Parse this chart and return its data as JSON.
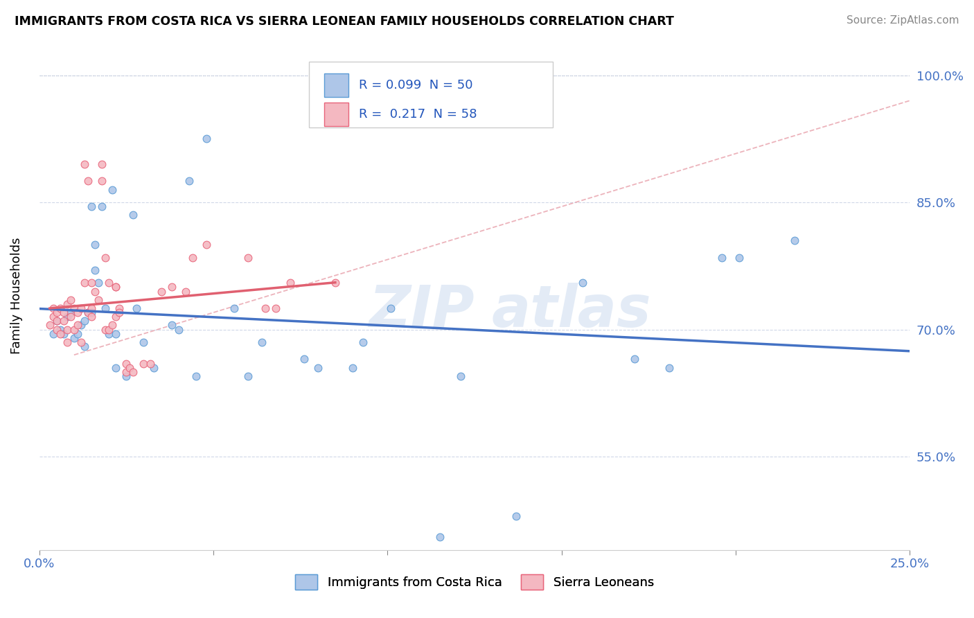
{
  "title": "IMMIGRANTS FROM COSTA RICA VS SIERRA LEONEAN FAMILY HOUSEHOLDS CORRELATION CHART",
  "source": "Source: ZipAtlas.com",
  "ylabel": "Family Households",
  "xlim": [
    0.0,
    0.25
  ],
  "ylim": [
    0.44,
    1.04
  ],
  "yticks": [
    0.55,
    0.7,
    0.85,
    1.0
  ],
  "ytick_labels": [
    "55.0%",
    "70.0%",
    "85.0%",
    "100.0%"
  ],
  "xtick_positions": [
    0.0,
    0.05,
    0.1,
    0.15,
    0.2,
    0.25
  ],
  "xtick_labels": [
    "0.0%",
    "",
    "",
    "",
    "",
    "25.0%"
  ],
  "legend_cr": {
    "label": "Immigrants from Costa Rica",
    "face": "#aec6e8",
    "edge": "#5b9bd5",
    "R": "0.099",
    "N": "50"
  },
  "legend_sl": {
    "label": "Sierra Leoneans",
    "face": "#f4b8c1",
    "edge": "#e8647a",
    "R": "0.217",
    "N": "58"
  },
  "trend_color_cr": "#4472c4",
  "trend_color_sl": "#e06070",
  "diag_color": "#e8a0aa",
  "tick_color": "#4472c4",
  "grid_color": "#d0d8e8",
  "scatter_cr": [
    [
      0.004,
      0.695
    ],
    [
      0.005,
      0.71
    ],
    [
      0.006,
      0.7
    ],
    [
      0.007,
      0.695
    ],
    [
      0.008,
      0.715
    ],
    [
      0.009,
      0.72
    ],
    [
      0.01,
      0.69
    ],
    [
      0.011,
      0.695
    ],
    [
      0.012,
      0.705
    ],
    [
      0.013,
      0.68
    ],
    [
      0.013,
      0.71
    ],
    [
      0.014,
      0.72
    ],
    [
      0.015,
      0.845
    ],
    [
      0.015,
      0.72
    ],
    [
      0.016,
      0.8
    ],
    [
      0.016,
      0.77
    ],
    [
      0.017,
      0.755
    ],
    [
      0.018,
      0.845
    ],
    [
      0.019,
      0.725
    ],
    [
      0.02,
      0.695
    ],
    [
      0.021,
      0.865
    ],
    [
      0.022,
      0.695
    ],
    [
      0.022,
      0.655
    ],
    [
      0.025,
      0.645
    ],
    [
      0.027,
      0.835
    ],
    [
      0.028,
      0.725
    ],
    [
      0.03,
      0.685
    ],
    [
      0.033,
      0.655
    ],
    [
      0.038,
      0.705
    ],
    [
      0.04,
      0.7
    ],
    [
      0.043,
      0.875
    ],
    [
      0.045,
      0.645
    ],
    [
      0.048,
      0.925
    ],
    [
      0.056,
      0.725
    ],
    [
      0.06,
      0.645
    ],
    [
      0.064,
      0.685
    ],
    [
      0.076,
      0.665
    ],
    [
      0.08,
      0.655
    ],
    [
      0.09,
      0.655
    ],
    [
      0.093,
      0.685
    ],
    [
      0.101,
      0.725
    ],
    [
      0.115,
      0.455
    ],
    [
      0.121,
      0.645
    ],
    [
      0.137,
      0.48
    ],
    [
      0.156,
      0.755
    ],
    [
      0.171,
      0.665
    ],
    [
      0.181,
      0.655
    ],
    [
      0.196,
      0.785
    ],
    [
      0.201,
      0.785
    ],
    [
      0.217,
      0.805
    ]
  ],
  "scatter_sl": [
    [
      0.003,
      0.705
    ],
    [
      0.004,
      0.725
    ],
    [
      0.004,
      0.715
    ],
    [
      0.005,
      0.7
    ],
    [
      0.005,
      0.71
    ],
    [
      0.005,
      0.72
    ],
    [
      0.006,
      0.695
    ],
    [
      0.006,
      0.725
    ],
    [
      0.007,
      0.71
    ],
    [
      0.007,
      0.72
    ],
    [
      0.008,
      0.73
    ],
    [
      0.008,
      0.7
    ],
    [
      0.008,
      0.685
    ],
    [
      0.009,
      0.715
    ],
    [
      0.009,
      0.735
    ],
    [
      0.01,
      0.725
    ],
    [
      0.01,
      0.7
    ],
    [
      0.011,
      0.705
    ],
    [
      0.011,
      0.72
    ],
    [
      0.012,
      0.725
    ],
    [
      0.012,
      0.685
    ],
    [
      0.013,
      0.895
    ],
    [
      0.013,
      0.755
    ],
    [
      0.014,
      0.875
    ],
    [
      0.014,
      0.72
    ],
    [
      0.015,
      0.755
    ],
    [
      0.015,
      0.725
    ],
    [
      0.015,
      0.715
    ],
    [
      0.016,
      0.745
    ],
    [
      0.017,
      0.735
    ],
    [
      0.018,
      0.895
    ],
    [
      0.018,
      0.875
    ],
    [
      0.019,
      0.7
    ],
    [
      0.019,
      0.785
    ],
    [
      0.02,
      0.755
    ],
    [
      0.02,
      0.7
    ],
    [
      0.021,
      0.705
    ],
    [
      0.022,
      0.75
    ],
    [
      0.022,
      0.715
    ],
    [
      0.022,
      0.75
    ],
    [
      0.023,
      0.725
    ],
    [
      0.023,
      0.72
    ],
    [
      0.025,
      0.66
    ],
    [
      0.025,
      0.65
    ],
    [
      0.026,
      0.655
    ],
    [
      0.027,
      0.65
    ],
    [
      0.03,
      0.66
    ],
    [
      0.032,
      0.66
    ],
    [
      0.035,
      0.745
    ],
    [
      0.038,
      0.75
    ],
    [
      0.042,
      0.745
    ],
    [
      0.044,
      0.785
    ],
    [
      0.048,
      0.8
    ],
    [
      0.06,
      0.785
    ],
    [
      0.065,
      0.725
    ],
    [
      0.068,
      0.725
    ],
    [
      0.072,
      0.755
    ],
    [
      0.085,
      0.755
    ]
  ]
}
